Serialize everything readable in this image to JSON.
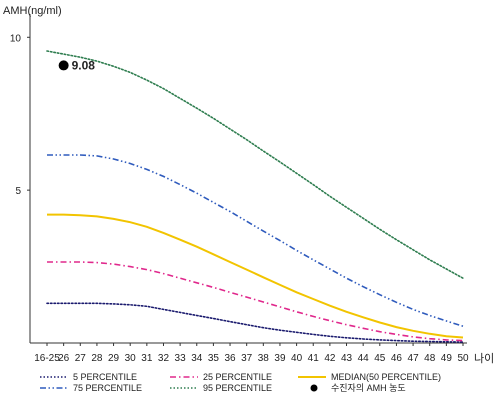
{
  "chart_data": {
    "type": "line",
    "ylabel": "AMH(ng/ml)",
    "xlabel": "나이",
    "x": [
      "16-25",
      "26",
      "27",
      "28",
      "29",
      "30",
      "31",
      "32",
      "33",
      "34",
      "35",
      "36",
      "37",
      "38",
      "39",
      "40",
      "41",
      "42",
      "43",
      "44",
      "45",
      "46",
      "47",
      "48",
      "49",
      "50"
    ],
    "y_ticks": [
      "5",
      "10"
    ],
    "ylim": [
      0,
      10.5
    ],
    "series": [
      {
        "name": "5 PERCENTILE",
        "color": "#1a1a6e",
        "style": "dotted",
        "values": [
          1.3,
          1.3,
          1.3,
          1.3,
          1.28,
          1.25,
          1.2,
          1.1,
          1.0,
          0.9,
          0.8,
          0.7,
          0.6,
          0.5,
          0.42,
          0.35,
          0.28,
          0.22,
          0.17,
          0.13,
          0.1,
          0.08,
          0.06,
          0.05,
          0.04,
          0.03
        ]
      },
      {
        "name": "25 PERCENTILE",
        "color": "#e0288c",
        "style": "dashdot",
        "values": [
          2.65,
          2.65,
          2.65,
          2.63,
          2.58,
          2.5,
          2.4,
          2.27,
          2.12,
          1.97,
          1.82,
          1.66,
          1.5,
          1.34,
          1.18,
          1.02,
          0.87,
          0.73,
          0.6,
          0.48,
          0.37,
          0.28,
          0.2,
          0.14,
          0.1,
          0.08
        ]
      },
      {
        "name": "MEDIAN(50 PERCENTILE)",
        "color": "#f2c400",
        "style": "solid",
        "values": [
          4.2,
          4.2,
          4.18,
          4.14,
          4.06,
          3.95,
          3.8,
          3.6,
          3.38,
          3.15,
          2.9,
          2.65,
          2.4,
          2.15,
          1.9,
          1.66,
          1.44,
          1.22,
          1.02,
          0.84,
          0.67,
          0.52,
          0.4,
          0.3,
          0.22,
          0.18
        ]
      },
      {
        "name": "75 PERCENTILE",
        "color": "#2f5bbd",
        "style": "dashdotdot",
        "values": [
          6.15,
          6.15,
          6.15,
          6.12,
          6.02,
          5.87,
          5.68,
          5.45,
          5.18,
          4.9,
          4.6,
          4.3,
          3.98,
          3.66,
          3.35,
          3.03,
          2.72,
          2.42,
          2.12,
          1.84,
          1.58,
          1.33,
          1.1,
          0.9,
          0.72,
          0.55
        ]
      },
      {
        "name": "95 PERCENTILE",
        "color": "#2e7d4f",
        "style": "dotted",
        "values": [
          9.55,
          9.45,
          9.35,
          9.22,
          9.05,
          8.85,
          8.6,
          8.32,
          8.0,
          7.68,
          7.35,
          7.0,
          6.65,
          6.28,
          5.92,
          5.55,
          5.18,
          4.8,
          4.44,
          4.08,
          3.72,
          3.38,
          3.05,
          2.72,
          2.42,
          2.12
        ]
      }
    ],
    "annotation": {
      "label": "9.08",
      "x": "26",
      "y": 9.08
    },
    "legend": {
      "placement": "bottom",
      "items": [
        {
          "label": "5 PERCENTILE",
          "color": "#1a1a6e",
          "style": "dotted"
        },
        {
          "label": "25 PERCENTILE",
          "color": "#e0288c",
          "style": "dashdot"
        },
        {
          "label": "MEDIAN(50 PERCENTILE)",
          "color": "#f2c400",
          "style": "solid"
        },
        {
          "label": "75 PERCENTILE",
          "color": "#2f5bbd",
          "style": "dashdotdot"
        },
        {
          "label": "95 PERCENTILE",
          "color": "#2e7d4f",
          "style": "dotted"
        },
        {
          "label": "수진자의 AMH 농도",
          "color": "#000000",
          "style": "marker"
        }
      ]
    },
    "grid": false
  }
}
